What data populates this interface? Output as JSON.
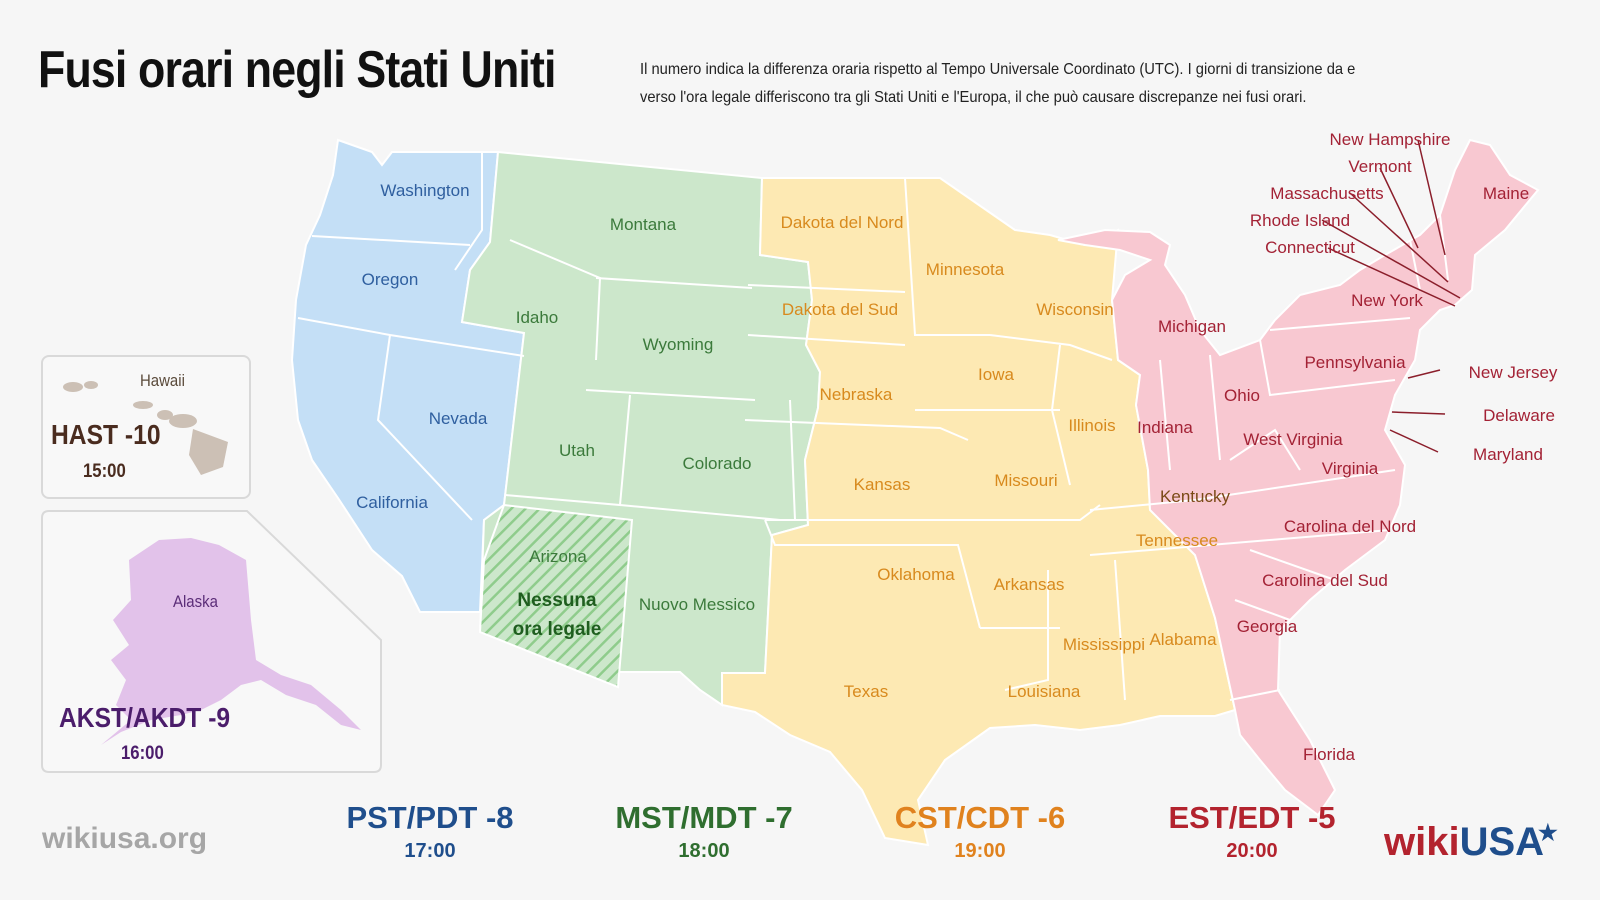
{
  "title": "Fusi orari negli Stati Uniti",
  "description": "Il numero indica la differenza oraria rispetto al Tempo Universale Coordinato (UTC). I giorni di transizione da e verso l'ora legale differiscono tra gli Stati Uniti e l'Europa, il che può causare discrepanze nei fusi orari.",
  "colors": {
    "pacific": "#c4dff6",
    "mountain": "#cce7cb",
    "central": "#fde9b3",
    "eastern": "#f8c8d1",
    "alaska": "#e2c2ea",
    "hawaii": "#ccc0b5"
  },
  "zones": [
    {
      "code": "PST/PDT -8",
      "time": "17:00",
      "color": "#1f4e8c"
    },
    {
      "code": "MST/MDT -7",
      "time": "18:00",
      "color": "#2f6e2f"
    },
    {
      "code": "CST/CDT -6",
      "time": "19:00",
      "color": "#e0821e"
    },
    {
      "code": "EST/EDT -5",
      "time": "20:00",
      "color": "#b3232e"
    }
  ],
  "hawaii": {
    "label": "Hawaii",
    "code": "HAST -10",
    "time": "15:00"
  },
  "alaska": {
    "label": "Alaska",
    "code": "AKST/AKDT -9",
    "time": "16:00"
  },
  "arizona_note": [
    "Nessuna",
    "ora legale"
  ],
  "states": {
    "washington": "Washington",
    "oregon": "Oregon",
    "california": "California",
    "nevada": "Nevada",
    "idaho": "Idaho",
    "montana": "Montana",
    "wyoming": "Wyoming",
    "utah": "Utah",
    "colorado": "Colorado",
    "arizona": "Arizona",
    "new_mexico": "Nuovo Messico",
    "north_dakota": "Dakota del Nord",
    "south_dakota": "Dakota del Sud",
    "nebraska": "Nebraska",
    "kansas": "Kansas",
    "oklahoma": "Oklahoma",
    "texas": "Texas",
    "minnesota": "Minnesota",
    "iowa": "Iowa",
    "missouri": "Missouri",
    "arkansas": "Arkansas",
    "louisiana": "Louisiana",
    "wisconsin": "Wisconsin",
    "illinois": "Illinois",
    "mississippi": "Mississippi",
    "alabama": "Alabama",
    "tennessee": "Tennessee",
    "kentucky": "Kentucky",
    "michigan": "Michigan",
    "indiana": "Indiana",
    "ohio": "Ohio",
    "west_virginia": "West Virginia",
    "virginia": "Virginia",
    "pennsylvania": "Pennsylvania",
    "new_york": "New York",
    "north_carolina": "Carolina del Nord",
    "south_carolina": "Carolina del Sud",
    "georgia": "Georgia",
    "florida": "Florida",
    "maine": "Maine",
    "new_hampshire": "New Hampshire",
    "vermont": "Vermont",
    "massachusetts": "Massachusetts",
    "rhode_island": "Rhode Island",
    "connecticut": "Connecticut",
    "new_jersey": "New Jersey",
    "delaware": "Delaware",
    "maryland": "Maryland"
  },
  "footer": {
    "site": "wikiusa.org",
    "logo_wiki": "wiki",
    "logo_usa": "USA",
    "logo_star": "★"
  }
}
